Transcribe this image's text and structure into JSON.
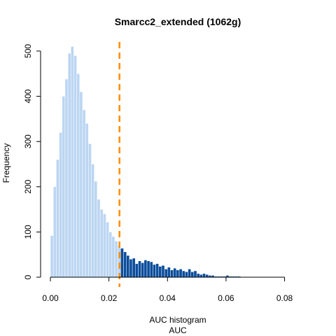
{
  "chart_data": {
    "type": "bar",
    "title": "Smarcc2_extended (1062g)",
    "xlabel": "AUC histogram",
    "xlabel_sub": "AUC",
    "ylabel": "Frequency",
    "xlim": [
      0,
      0.088
    ],
    "ylim": [
      0,
      520
    ],
    "x_ticks": [
      "0.00",
      "0.02",
      "0.04",
      "0.06",
      "0.08"
    ],
    "x_tick_values": [
      0,
      0.02,
      0.04,
      0.06,
      0.08
    ],
    "y_ticks": [
      "0",
      "100",
      "200",
      "300",
      "400",
      "500"
    ],
    "y_tick_values": [
      0,
      100,
      200,
      300,
      400,
      500
    ],
    "bin_width": 0.001,
    "bin_start": 0.0,
    "threshold": 0.0236,
    "colors": {
      "below_threshold": "#bcd6f2",
      "above_threshold": "#0b4d9b",
      "threshold_line": "#ff8c00",
      "bar_edge": "#ffffff",
      "axis": "#000000"
    },
    "grid": false,
    "legend": "none",
    "values": [
      92,
      200,
      260,
      320,
      400,
      438,
      495,
      510,
      490,
      450,
      410,
      370,
      340,
      295,
      250,
      212,
      172,
      150,
      140,
      122,
      100,
      90,
      80,
      70,
      64,
      56,
      48,
      40,
      42,
      30,
      36,
      32,
      38,
      36,
      34,
      28,
      30,
      24,
      26,
      18,
      22,
      16,
      20,
      16,
      18,
      14,
      12,
      18,
      12,
      14,
      8,
      6,
      8,
      6,
      4,
      4,
      2,
      2,
      2,
      2,
      4,
      2,
      2,
      2,
      2,
      0,
      0,
      0,
      0,
      0,
      0,
      0,
      0,
      0,
      0,
      0,
      0,
      0,
      0,
      0,
      0,
      0,
      0,
      0,
      0,
      0,
      0,
      0
    ]
  }
}
